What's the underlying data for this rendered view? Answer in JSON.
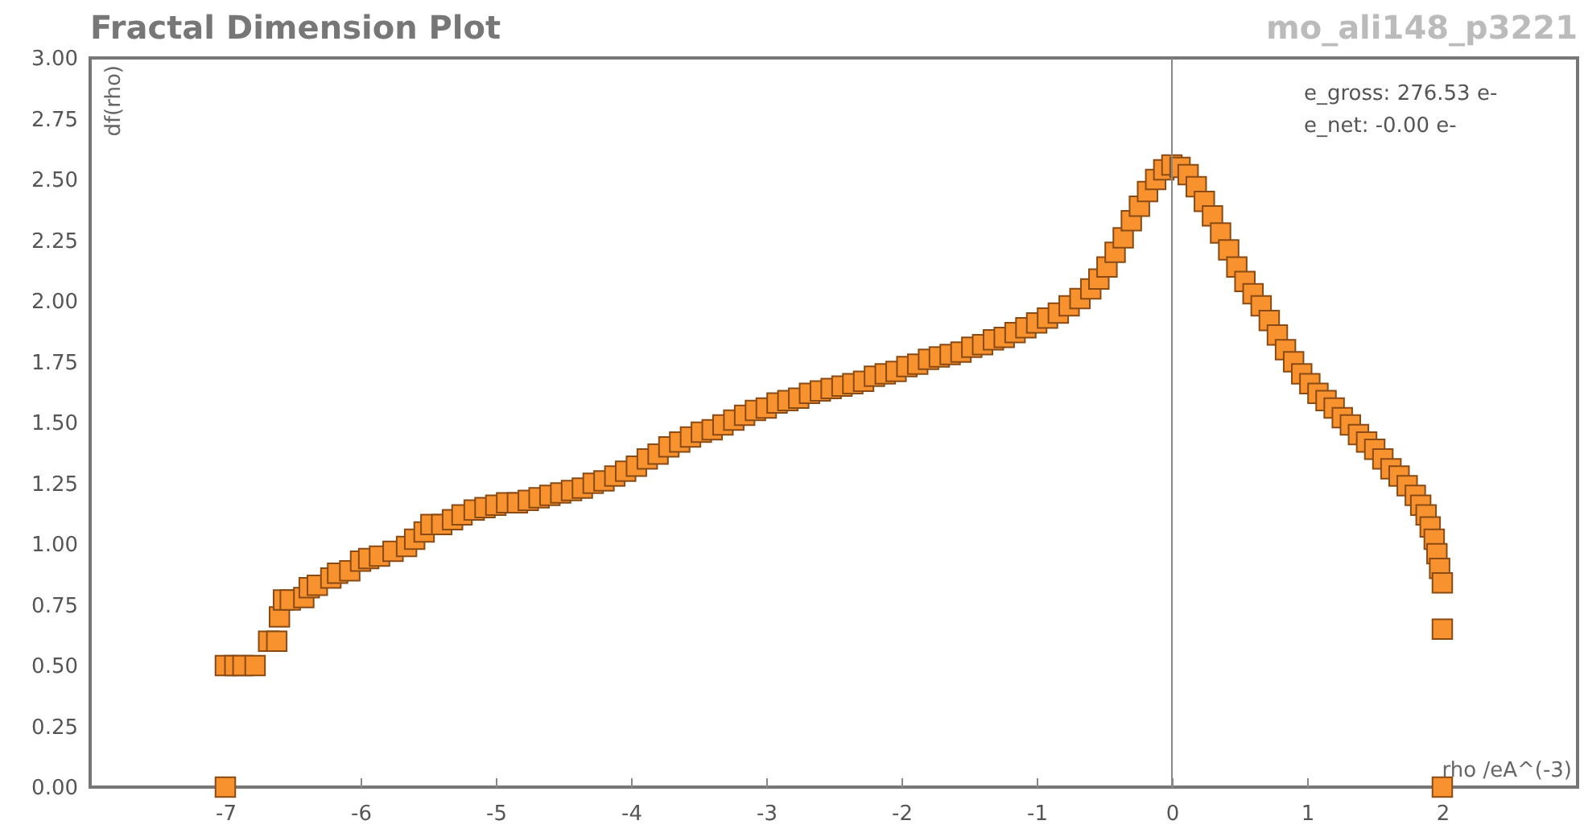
{
  "chart_data": {
    "type": "scatter",
    "title": "Fractal Dimension Plot",
    "subtitle": "mo_ali148_p3221",
    "xlabel": "rho /eA^(-3)",
    "ylabel": "df(rho)",
    "annotations": [
      "e_gross:   276.53 e-",
      "e_net:      -0.00 e-"
    ],
    "xlim": [
      -8,
      3
    ],
    "xticks": [
      -7,
      -6,
      -5,
      -4,
      -3,
      -2,
      -1,
      0,
      1,
      2
    ],
    "ylim": [
      0,
      3
    ],
    "yticks": [
      {
        "value": 0,
        "label": "0.00"
      },
      {
        "value": 0.25,
        "label": "0.25"
      },
      {
        "value": 0.5,
        "label": "0.50"
      },
      {
        "value": 0.75,
        "label": "0.75"
      },
      {
        "value": 1,
        "label": "1.00"
      },
      {
        "value": 1.25,
        "label": "1.25"
      },
      {
        "value": 1.5,
        "label": "1.50"
      },
      {
        "value": 1.75,
        "label": "1.75"
      },
      {
        "value": 2,
        "label": "2.00"
      },
      {
        "value": 2.25,
        "label": "2.25"
      },
      {
        "value": 2.5,
        "label": "2.50"
      },
      {
        "value": 2.75,
        "label": "2.75"
      },
      {
        "value": 3,
        "label": "3.00"
      }
    ],
    "marker": "square",
    "ref_lines": [
      {
        "axis": "x",
        "value": 0,
        "color": "#888888"
      }
    ],
    "series": [
      {
        "color": "#f7922e",
        "x": [
          -7,
          -7,
          -6.93,
          -6.87,
          -6.78,
          -6.68,
          -6.62,
          -6.6,
          -6.57,
          -6.52,
          -6.42,
          -6.38,
          -6.32,
          -6.22,
          -6.17,
          -6.08,
          -6.0,
          -5.94,
          -5.86,
          -5.76,
          -5.66,
          -5.6,
          -5.53,
          -5.48,
          -5.4,
          -5.32,
          -5.25,
          -5.16,
          -5.08,
          -5.0,
          -4.92,
          -4.84,
          -4.76,
          -4.68,
          -4.6,
          -4.52,
          -4.44,
          -4.36,
          -4.28,
          -4.2,
          -4.12,
          -4.04,
          -3.96,
          -3.88,
          -3.8,
          -3.72,
          -3.64,
          -3.56,
          -3.48,
          -3.4,
          -3.32,
          -3.24,
          -3.16,
          -3.08,
          -3.0,
          -2.92,
          -2.84,
          -2.76,
          -2.68,
          -2.6,
          -2.52,
          -2.44,
          -2.36,
          -2.28,
          -2.2,
          -2.12,
          -2.04,
          -1.96,
          -1.88,
          -1.8,
          -1.72,
          -1.64,
          -1.56,
          -1.48,
          -1.4,
          -1.32,
          -1.24,
          -1.16,
          -1.08,
          -1.0,
          -0.92,
          -0.84,
          -0.76,
          -0.68,
          -0.6,
          -0.54,
          -0.48,
          -0.42,
          -0.36,
          -0.3,
          -0.24,
          -0.18,
          -0.12,
          -0.06,
          0,
          0.06,
          0.12,
          0.18,
          0.24,
          0.3,
          0.36,
          0.42,
          0.48,
          0.54,
          0.6,
          0.66,
          0.72,
          0.78,
          0.84,
          0.9,
          0.96,
          1.02,
          1.08,
          1.14,
          1.2,
          1.26,
          1.32,
          1.38,
          1.44,
          1.5,
          1.56,
          1.62,
          1.68,
          1.74,
          1.8,
          1.84,
          1.88,
          1.91,
          1.94,
          1.96,
          1.98,
          2.0,
          2.0,
          2.0
        ],
        "values": [
          0,
          0.5,
          0.5,
          0.5,
          0.5,
          0.6,
          0.6,
          0.7,
          0.77,
          0.77,
          0.78,
          0.82,
          0.83,
          0.86,
          0.88,
          0.89,
          0.93,
          0.94,
          0.95,
          0.97,
          0.99,
          1.02,
          1.05,
          1.08,
          1.08,
          1.1,
          1.12,
          1.14,
          1.15,
          1.16,
          1.17,
          1.17,
          1.18,
          1.19,
          1.2,
          1.21,
          1.22,
          1.23,
          1.25,
          1.26,
          1.28,
          1.3,
          1.32,
          1.35,
          1.37,
          1.4,
          1.42,
          1.44,
          1.46,
          1.47,
          1.49,
          1.51,
          1.53,
          1.55,
          1.56,
          1.58,
          1.59,
          1.6,
          1.62,
          1.63,
          1.64,
          1.65,
          1.66,
          1.67,
          1.69,
          1.7,
          1.71,
          1.73,
          1.74,
          1.76,
          1.77,
          1.78,
          1.79,
          1.81,
          1.82,
          1.84,
          1.85,
          1.87,
          1.89,
          1.91,
          1.93,
          1.95,
          1.98,
          2.01,
          2.05,
          2.09,
          2.14,
          2.2,
          2.26,
          2.33,
          2.39,
          2.45,
          2.5,
          2.54,
          2.56,
          2.55,
          2.52,
          2.47,
          2.41,
          2.35,
          2.28,
          2.21,
          2.14,
          2.08,
          2.03,
          1.98,
          1.92,
          1.86,
          1.8,
          1.75,
          1.7,
          1.66,
          1.62,
          1.59,
          1.56,
          1.52,
          1.49,
          1.45,
          1.42,
          1.39,
          1.35,
          1.31,
          1.28,
          1.24,
          1.2,
          1.16,
          1.12,
          1.07,
          1.02,
          0.96,
          0.9,
          0.84,
          0.65,
          0
        ]
      }
    ]
  }
}
